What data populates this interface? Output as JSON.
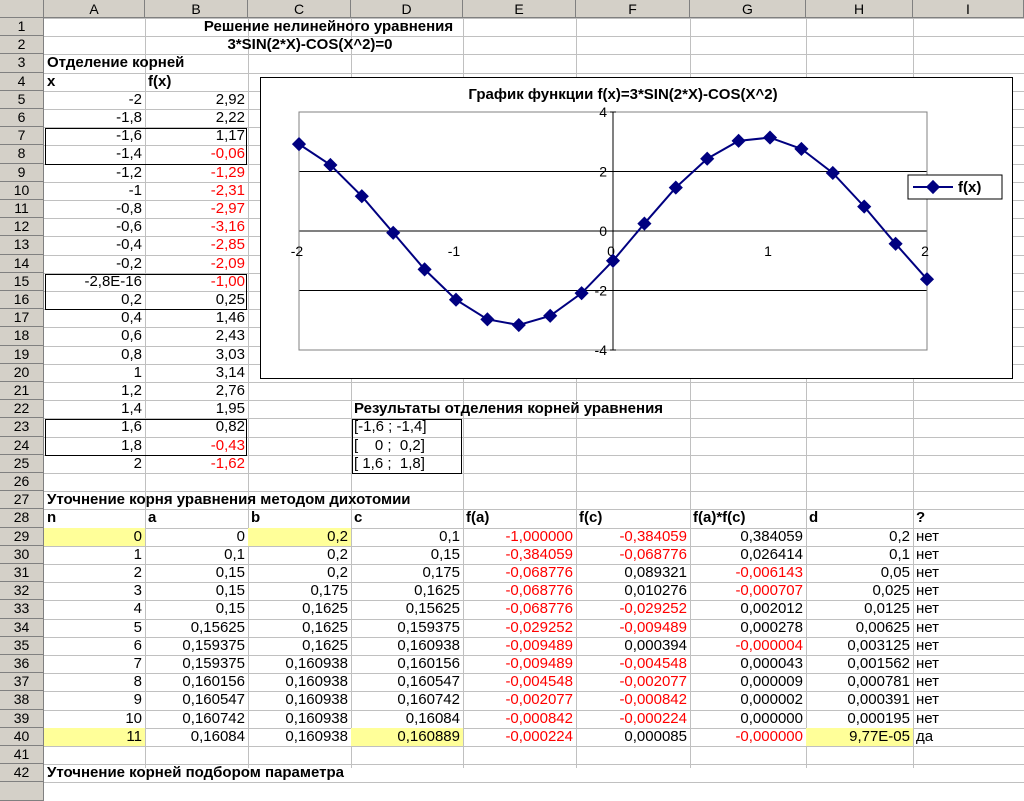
{
  "columns": [
    "A",
    "B",
    "C",
    "D",
    "E",
    "F",
    "G",
    "H",
    "I"
  ],
  "title1": "Решение нелинейного уравнения",
  "title2": "3*SIN(2*X)-COS(X^2)=0",
  "sep_title": "Отделение корней",
  "sep_headers": {
    "x": "x",
    "fx": "f(x)"
  },
  "sep_rows": [
    [
      "-2",
      "2,92",
      false
    ],
    [
      "-1,8",
      "2,22",
      false
    ],
    [
      "-1,6",
      "1,17",
      false
    ],
    [
      "-1,4",
      "-0,06",
      true
    ],
    [
      "-1,2",
      "-1,29",
      true
    ],
    [
      "-1",
      "-2,31",
      true
    ],
    [
      "-0,8",
      "-2,97",
      true
    ],
    [
      "-0,6",
      "-3,16",
      true
    ],
    [
      "-0,4",
      "-2,85",
      true
    ],
    [
      "-0,2",
      "-2,09",
      true
    ],
    [
      "-2,8E-16",
      "-1,00",
      true
    ],
    [
      "0,2",
      "0,25",
      false
    ],
    [
      "0,4",
      "1,46",
      false
    ],
    [
      "0,6",
      "2,43",
      false
    ],
    [
      "0,8",
      "3,03",
      false
    ],
    [
      "1",
      "3,14",
      false
    ],
    [
      "1,2",
      "2,76",
      false
    ],
    [
      "1,4",
      "1,95",
      false
    ],
    [
      "1,6",
      "0,82",
      false
    ],
    [
      "1,8",
      "-0,43",
      true
    ],
    [
      "2",
      "-1,62",
      true
    ]
  ],
  "results_title": "Результаты отделения корней уравнения",
  "results": [
    "[-1,6 ; -1,4]",
    "[    0 ;  0,2]",
    "[ 1,6 ;  1,8]"
  ],
  "dich_title": "Уточнение корня уравнения методом дихотомии",
  "dich_headers": [
    "n",
    "a",
    "b",
    "c",
    "f(a)",
    "f(c)",
    "f(a)*f(c)",
    "d",
    "?"
  ],
  "dich_rows": [
    [
      "0",
      "0",
      "0,2",
      "0,1",
      "-1,000000",
      "-0,384059",
      "0,384059",
      "0,2",
      "нет"
    ],
    [
      "1",
      "0,1",
      "0,2",
      "0,15",
      "-0,384059",
      "-0,068776",
      "0,026414",
      "0,1",
      "нет"
    ],
    [
      "2",
      "0,15",
      "0,2",
      "0,175",
      "-0,068776",
      "0,089321",
      "-0,006143",
      "0,05",
      "нет"
    ],
    [
      "3",
      "0,15",
      "0,175",
      "0,1625",
      "-0,068776",
      "0,010276",
      "-0,000707",
      "0,025",
      "нет"
    ],
    [
      "4",
      "0,15",
      "0,1625",
      "0,15625",
      "-0,068776",
      "-0,029252",
      "0,002012",
      "0,0125",
      "нет"
    ],
    [
      "5",
      "0,15625",
      "0,1625",
      "0,159375",
      "-0,029252",
      "-0,009489",
      "0,000278",
      "0,00625",
      "нет"
    ],
    [
      "6",
      "0,159375",
      "0,1625",
      "0,160938",
      "-0,009489",
      "0,000394",
      "-0,000004",
      "0,003125",
      "нет"
    ],
    [
      "7",
      "0,159375",
      "0,160938",
      "0,160156",
      "-0,009489",
      "-0,004548",
      "0,000043",
      "0,001562",
      "нет"
    ],
    [
      "8",
      "0,160156",
      "0,160938",
      "0,160547",
      "-0,004548",
      "-0,002077",
      "0,000009",
      "0,000781",
      "нет"
    ],
    [
      "9",
      "0,160547",
      "0,160938",
      "0,160742",
      "-0,002077",
      "-0,000842",
      "0,000002",
      "0,000391",
      "нет"
    ],
    [
      "10",
      "0,160742",
      "0,160938",
      "0,16084",
      "-0,000842",
      "-0,000224",
      "0,000000",
      "0,000195",
      "нет"
    ],
    [
      "11",
      "0,16084",
      "0,160938",
      "0,160889",
      "-0,000224",
      "0,000085",
      "-0,000000",
      "9,77E-05",
      "да"
    ]
  ],
  "row43_text": "Уточнение корней подбором параметра",
  "chart_data": {
    "type": "line",
    "title": "График функции f(x)=3*SIN(2*X)-COS(X^2)",
    "x": [
      -2,
      -1.8,
      -1.6,
      -1.4,
      -1.2,
      -1,
      -0.8,
      -0.6,
      -0.4,
      -0.2,
      0,
      0.2,
      0.4,
      0.6,
      0.8,
      1,
      1.2,
      1.4,
      1.6,
      1.8,
      2
    ],
    "series": [
      {
        "name": "f(x)",
        "values": [
          2.92,
          2.22,
          1.17,
          -0.06,
          -1.29,
          -2.31,
          -2.97,
          -3.16,
          -2.85,
          -2.09,
          -1.0,
          0.25,
          1.46,
          2.43,
          3.03,
          3.14,
          2.76,
          1.95,
          0.82,
          -0.43,
          -1.62
        ]
      }
    ],
    "xlim": [
      -2,
      2
    ],
    "ylim": [
      -4,
      4
    ],
    "xticks": [
      "-2",
      "-1",
      "0",
      "1",
      "2"
    ],
    "yticks": [
      "4",
      "2",
      "0",
      "-2",
      "-4"
    ],
    "legend": "right",
    "color": "#000080"
  }
}
